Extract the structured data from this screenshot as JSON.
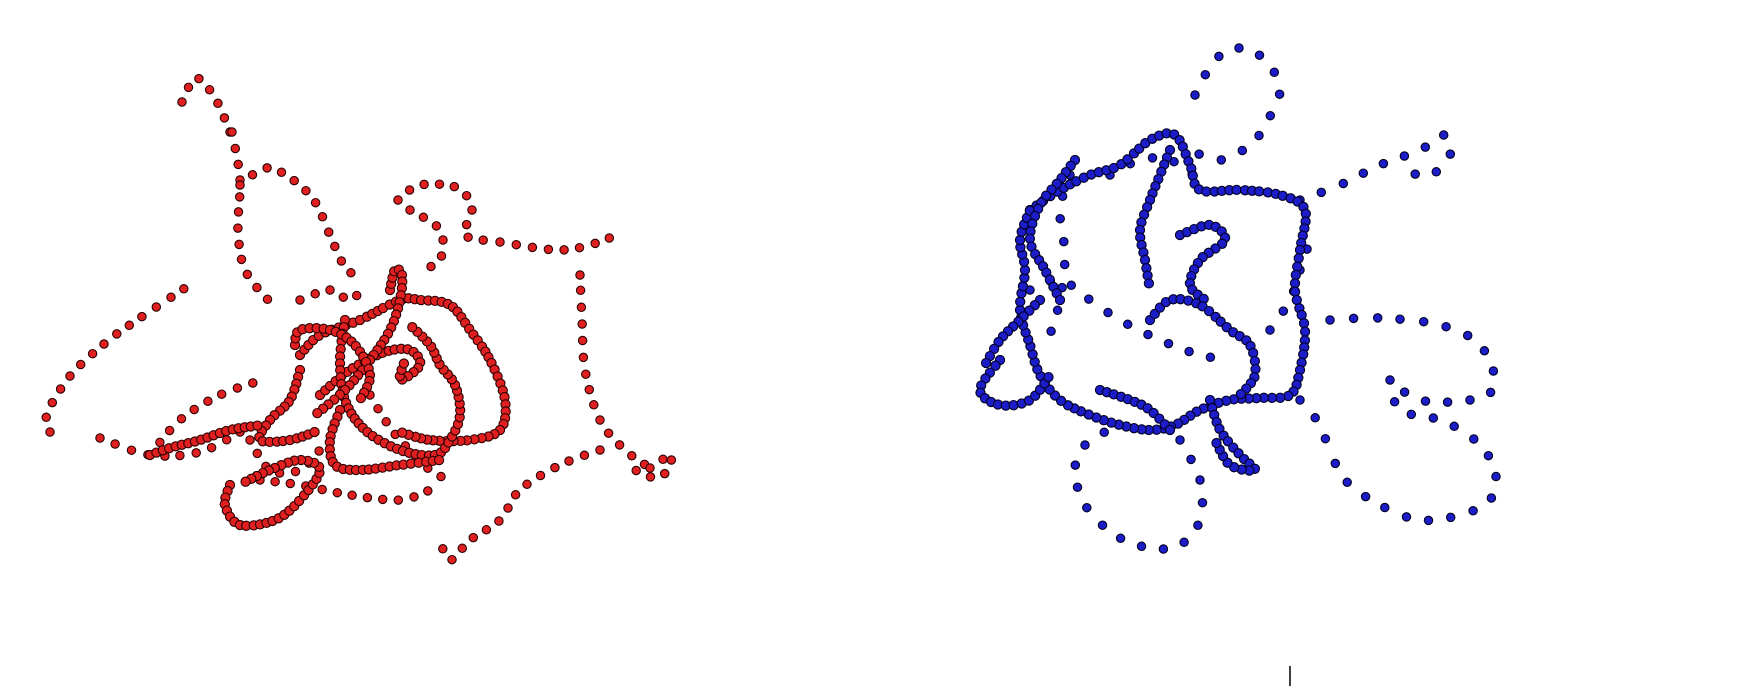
{
  "structures": [
    {
      "name": "red-structure",
      "color": "#e02020",
      "outline": "#2a0000"
    },
    {
      "name": "blue-structure",
      "color": "#1c1cc8",
      "outline": "#000020"
    }
  ]
}
